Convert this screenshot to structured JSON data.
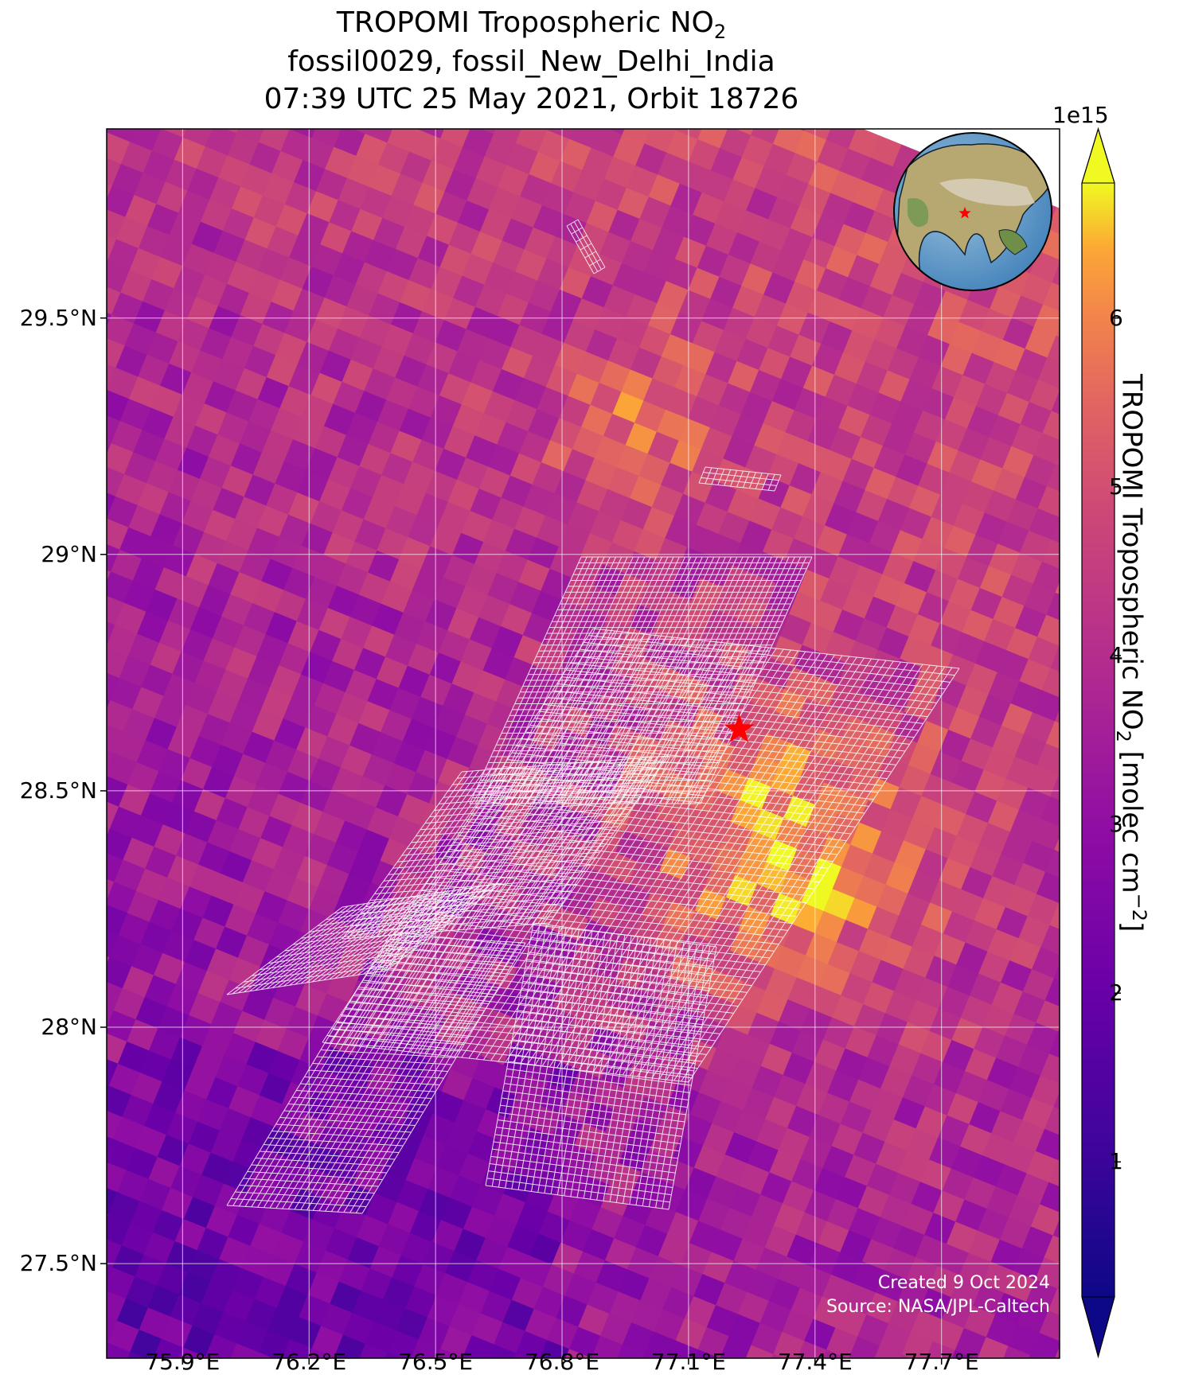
{
  "title": {
    "line1_main": "TROPOMI Tropospheric NO",
    "line1_sub": "2",
    "line2": "fossil0029, fossil_New_Delhi_India",
    "line3": "07:39 UTC 25 May 2021, Orbit 18726"
  },
  "map": {
    "lat_range": [
      27.3,
      29.9
    ],
    "lon_range": [
      75.72,
      77.98
    ],
    "lat_ticks": [
      "29.5°N",
      "29°N",
      "28.5°N",
      "28°N",
      "27.5°N"
    ],
    "lon_ticks": [
      "75.9°E",
      "76.2°E",
      "76.5°E",
      "76.8°E",
      "77.1°E",
      "77.4°E",
      "77.7°E"
    ],
    "target_marker": {
      "lat": 28.63,
      "lon": 77.22,
      "symbol": "red-star"
    },
    "overlay_grid_color": "#ffffff",
    "globe_inset": {
      "center_lat": 28.6,
      "center_lon": 77.2,
      "marker": "red-star"
    }
  },
  "colorbar": {
    "colormap": "plasma",
    "exponent_label": "1e15",
    "ticks": [
      "1",
      "2",
      "3",
      "4",
      "5",
      "6"
    ],
    "range": [
      0.2,
      6.8
    ],
    "extend": "both",
    "label_main": "TROPOMI Tropospheric NO",
    "label_sub": "2",
    "label_units": " [molec cm",
    "label_units_sup": "−2",
    "label_end": "]"
  },
  "credits": {
    "created": "Created 9 Oct 2024",
    "source": "Source: NASA/JPL-Caltech"
  },
  "colors": {
    "star": "#ff0000",
    "gridline": "#ffffff",
    "plasma_low": "#0d0887",
    "plasma_high": "#f0f921"
  }
}
